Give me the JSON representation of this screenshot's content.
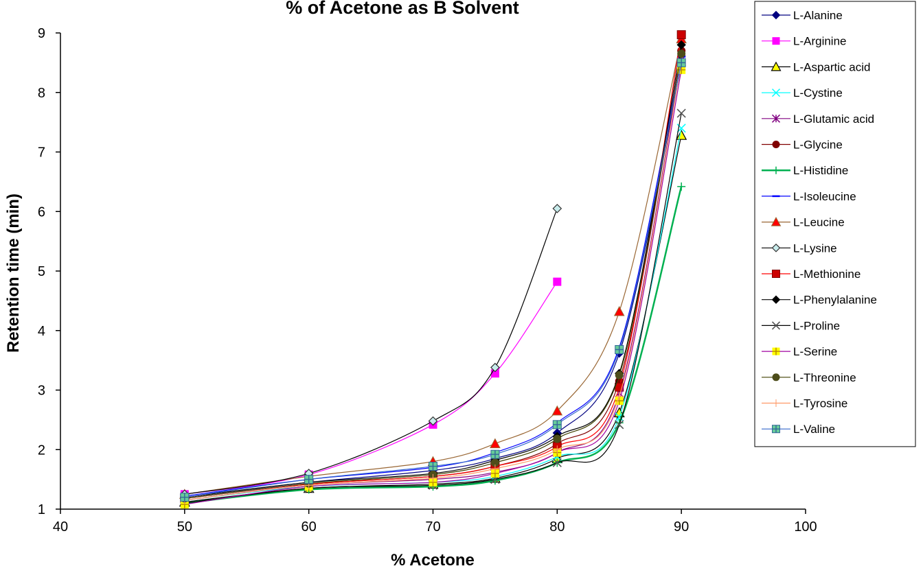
{
  "chart_data": {
    "type": "line",
    "title": "% of Acetone as B Solvent",
    "xlabel": "% Acetone",
    "ylabel": "Retention time (min)",
    "xlim": [
      40,
      100
    ],
    "ylim": [
      1,
      9
    ],
    "x_ticks": [
      "40",
      "50",
      "60",
      "70",
      "80",
      "90",
      "100"
    ],
    "y_ticks": [
      "1",
      "2",
      "3",
      "4",
      "5",
      "6",
      "7",
      "8",
      "9"
    ],
    "grid": false,
    "legend_position": "top-right",
    "series": [
      {
        "name": "L-Alanine",
        "color": "#000080",
        "marker": "diamond-filled",
        "x": [
          50,
          60,
          70,
          75,
          80,
          85,
          90
        ],
        "y": [
          1.2,
          1.45,
          1.65,
          1.85,
          2.28,
          3.62,
          8.45
        ]
      },
      {
        "name": "L-Arginine",
        "color": "#ff00ff",
        "marker": "square-filled",
        "x": [
          50,
          60,
          70,
          75,
          80
        ],
        "y": [
          1.25,
          1.58,
          2.42,
          3.28,
          4.82
        ]
      },
      {
        "name": "L-Aspartic acid",
        "color": "#000000",
        "marker": "triangle-yellow",
        "x": [
          50,
          60,
          70,
          75,
          80,
          85,
          90
        ],
        "y": [
          1.12,
          1.35,
          1.42,
          1.52,
          1.85,
          2.62,
          7.28
        ]
      },
      {
        "name": "L-Cystine",
        "color": "#00ffff",
        "marker": "x",
        "x": [
          50,
          60,
          70,
          75,
          80,
          85,
          90
        ],
        "y": [
          1.15,
          1.38,
          1.45,
          1.55,
          1.88,
          2.55,
          7.4
        ]
      },
      {
        "name": "L-Glutamic acid",
        "color": "#800080",
        "marker": "asterisk",
        "x": [
          50,
          60,
          70,
          75,
          80,
          85,
          90
        ],
        "y": [
          1.15,
          1.4,
          1.5,
          1.62,
          1.95,
          2.95,
          8.55
        ]
      },
      {
        "name": "L-Glycine",
        "color": "#800000",
        "marker": "circle-filled",
        "x": [
          50,
          60,
          70,
          75,
          80,
          85,
          90
        ],
        "y": [
          1.18,
          1.42,
          1.55,
          1.72,
          2.1,
          3.15,
          8.7
        ]
      },
      {
        "name": "L-Histidine",
        "color": "#00b050",
        "marker": "plus",
        "x": [
          50,
          60,
          70,
          75,
          80,
          85,
          90
        ],
        "y": [
          1.1,
          1.33,
          1.38,
          1.48,
          1.78,
          2.45,
          6.42
        ]
      },
      {
        "name": "L-Isoleucine",
        "color": "#0000ff",
        "marker": "dash",
        "x": [
          50,
          60,
          70,
          75,
          80,
          85,
          90
        ],
        "y": [
          1.22,
          1.5,
          1.7,
          1.95,
          2.45,
          3.72,
          8.6
        ]
      },
      {
        "name": "L-Leucine",
        "color": "#996633",
        "marker": "triangle-red",
        "x": [
          50,
          60,
          70,
          75,
          80,
          85,
          90
        ],
        "y": [
          1.25,
          1.55,
          1.8,
          2.1,
          2.65,
          4.32,
          8.9
        ]
      },
      {
        "name": "L-Lysine",
        "color": "#000000",
        "marker": "diamond-open",
        "x": [
          50,
          60,
          70,
          75,
          80
        ],
        "y": [
          1.25,
          1.6,
          2.48,
          3.38,
          6.05
        ]
      },
      {
        "name": "L-Methionine",
        "color": "#ff0000",
        "marker": "square-red",
        "x": [
          50,
          60,
          70,
          75,
          80,
          85,
          90
        ],
        "y": [
          1.18,
          1.42,
          1.55,
          1.72,
          2.05,
          3.05,
          8.97
        ]
      },
      {
        "name": "L-Phenylalanine",
        "color": "#000000",
        "marker": "diamond-black",
        "x": [
          50,
          60,
          70,
          75,
          80,
          85,
          90
        ],
        "y": [
          1.2,
          1.45,
          1.6,
          1.82,
          2.22,
          3.28,
          8.8
        ]
      },
      {
        "name": "L-Proline",
        "color": "#000000",
        "marker": "x-gray",
        "x": [
          50,
          60,
          70,
          75,
          80,
          85,
          90
        ],
        "y": [
          1.1,
          1.35,
          1.4,
          1.5,
          1.78,
          2.42,
          7.65
        ]
      },
      {
        "name": "L-Serine",
        "color": "#a000a0",
        "marker": "square-yellow-plus",
        "x": [
          50,
          60,
          70,
          75,
          80,
          85,
          90
        ],
        "y": [
          1.08,
          1.38,
          1.45,
          1.6,
          1.95,
          2.82,
          8.38
        ]
      },
      {
        "name": "L-Threonine",
        "color": "#404000",
        "marker": "circle-olive",
        "x": [
          50,
          60,
          70,
          75,
          80,
          85,
          90
        ],
        "y": [
          1.18,
          1.43,
          1.58,
          1.78,
          2.18,
          3.25,
          8.65
        ]
      },
      {
        "name": "L-Tyrosine",
        "color": "#ff9966",
        "marker": "plus-thin",
        "x": [
          50,
          60,
          70,
          75,
          80,
          85,
          90
        ],
        "y": [
          1.15,
          1.4,
          1.52,
          1.68,
          2.0,
          2.9,
          8.5
        ]
      },
      {
        "name": "L-Valine",
        "color": "#3366cc",
        "marker": "square-green-plus",
        "x": [
          50,
          60,
          70,
          75,
          80,
          85,
          90
        ],
        "y": [
          1.2,
          1.5,
          1.72,
          1.92,
          2.42,
          3.68,
          8.5
        ]
      }
    ]
  }
}
